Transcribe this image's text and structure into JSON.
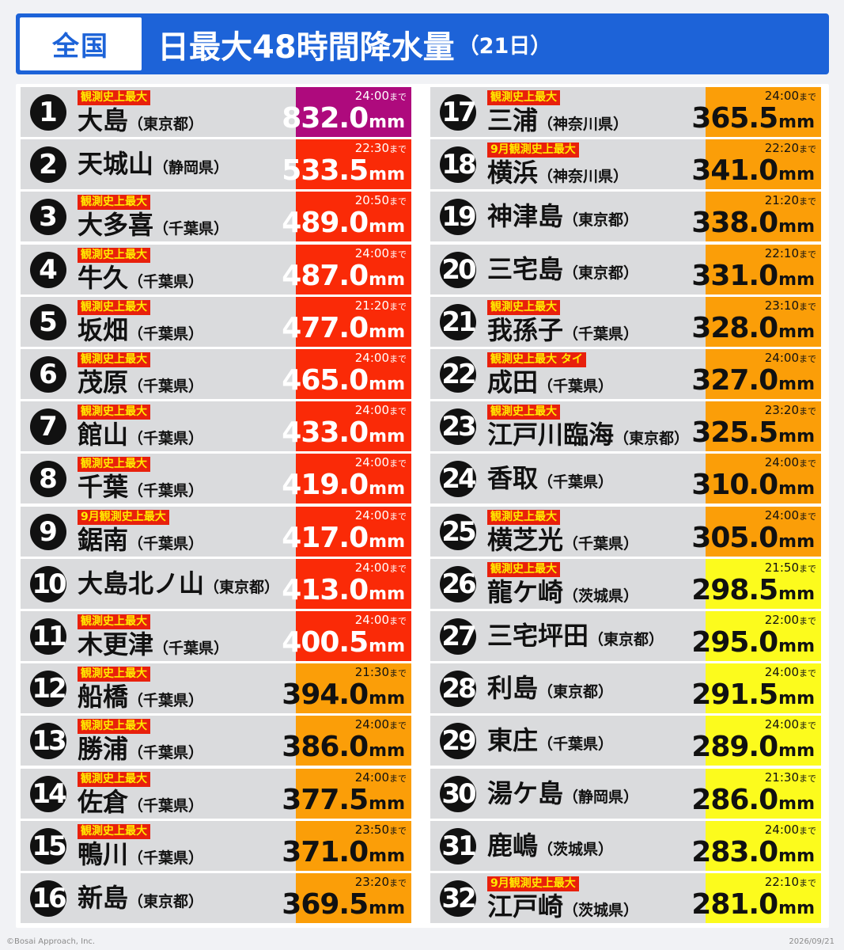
{
  "header": {
    "badge": "全国",
    "title": "日最大48時間降水量",
    "title_sub": "（21日）"
  },
  "unit": "mm",
  "until_suffix": "まで",
  "colors": {
    "header_blue": "#1d63d8",
    "purple": "#ae0a7d",
    "red": "#fa2a07",
    "orange": "#fb9e08",
    "yellow": "#fcfb1d",
    "tag_red": "#e8200c",
    "tag_text_yellow": "#ffeb00"
  },
  "rows": [
    {
      "rank": "1",
      "tag": "観測史上最大",
      "name": "大島",
      "pref": "（東京都）",
      "until": "24:00",
      "value": "832.0",
      "color": "purple"
    },
    {
      "rank": "2",
      "tag": "",
      "name": "天城山",
      "pref": "（静岡県）",
      "until": "22:30",
      "value": "533.5",
      "color": "red"
    },
    {
      "rank": "3",
      "tag": "観測史上最大",
      "name": "大多喜",
      "pref": "（千葉県）",
      "until": "20:50",
      "value": "489.0",
      "color": "red"
    },
    {
      "rank": "4",
      "tag": "観測史上最大",
      "name": "牛久",
      "pref": "（千葉県）",
      "until": "24:00",
      "value": "487.0",
      "color": "red"
    },
    {
      "rank": "5",
      "tag": "観測史上最大",
      "name": "坂畑",
      "pref": "（千葉県）",
      "until": "21:20",
      "value": "477.0",
      "color": "red"
    },
    {
      "rank": "6",
      "tag": "観測史上最大",
      "name": "茂原",
      "pref": "（千葉県）",
      "until": "24:00",
      "value": "465.0",
      "color": "red"
    },
    {
      "rank": "7",
      "tag": "観測史上最大",
      "name": "館山",
      "pref": "（千葉県）",
      "until": "24:00",
      "value": "433.0",
      "color": "red"
    },
    {
      "rank": "8",
      "tag": "観測史上最大",
      "name": "千葉",
      "pref": "（千葉県）",
      "until": "24:00",
      "value": "419.0",
      "color": "red"
    },
    {
      "rank": "9",
      "tag": "9月観測史上最大",
      "name": "鋸南",
      "pref": "（千葉県）",
      "until": "24:00",
      "value": "417.0",
      "color": "red"
    },
    {
      "rank": "10",
      "tag": "",
      "name": "大島北ノ山",
      "pref": "（東京都）",
      "until": "24:00",
      "value": "413.0",
      "color": "red"
    },
    {
      "rank": "11",
      "tag": "観測史上最大",
      "name": "木更津",
      "pref": "（千葉県）",
      "until": "24:00",
      "value": "400.5",
      "color": "red"
    },
    {
      "rank": "12",
      "tag": "観測史上最大",
      "name": "船橋",
      "pref": "（千葉県）",
      "until": "21:30",
      "value": "394.0",
      "color": "orange"
    },
    {
      "rank": "13",
      "tag": "観測史上最大",
      "name": "勝浦",
      "pref": "（千葉県）",
      "until": "24:00",
      "value": "386.0",
      "color": "orange"
    },
    {
      "rank": "14",
      "tag": "観測史上最大",
      "name": "佐倉",
      "pref": "（千葉県）",
      "until": "24:00",
      "value": "377.5",
      "color": "orange"
    },
    {
      "rank": "15",
      "tag": "観測史上最大",
      "name": "鴨川",
      "pref": "（千葉県）",
      "until": "23:50",
      "value": "371.0",
      "color": "orange"
    },
    {
      "rank": "16",
      "tag": "",
      "name": "新島",
      "pref": "（東京都）",
      "until": "23:20",
      "value": "369.5",
      "color": "orange"
    },
    {
      "rank": "17",
      "tag": "観測史上最大",
      "name": "三浦",
      "pref": "（神奈川県）",
      "until": "24:00",
      "value": "365.5",
      "color": "orange"
    },
    {
      "rank": "18",
      "tag": "9月観測史上最大",
      "name": "横浜",
      "pref": "（神奈川県）",
      "until": "22:20",
      "value": "341.0",
      "color": "orange"
    },
    {
      "rank": "19",
      "tag": "",
      "name": "神津島",
      "pref": "（東京都）",
      "until": "21:20",
      "value": "338.0",
      "color": "orange"
    },
    {
      "rank": "20",
      "tag": "",
      "name": "三宅島",
      "pref": "（東京都）",
      "until": "22:10",
      "value": "331.0",
      "color": "orange"
    },
    {
      "rank": "21",
      "tag": "観測史上最大",
      "name": "我孫子",
      "pref": "（千葉県）",
      "until": "23:10",
      "value": "328.0",
      "color": "orange"
    },
    {
      "rank": "22",
      "tag": "観測史上最大 タイ",
      "name": "成田",
      "pref": "（千葉県）",
      "until": "24:00",
      "value": "327.0",
      "color": "orange"
    },
    {
      "rank": "23",
      "tag": "観測史上最大",
      "name": "江戸川臨海",
      "pref": "（東京都）",
      "until": "23:20",
      "value": "325.5",
      "color": "orange"
    },
    {
      "rank": "24",
      "tag": "",
      "name": "香取",
      "pref": "（千葉県）",
      "until": "24:00",
      "value": "310.0",
      "color": "orange"
    },
    {
      "rank": "25",
      "tag": "観測史上最大",
      "name": "横芝光",
      "pref": "（千葉県）",
      "until": "24:00",
      "value": "305.0",
      "color": "orange"
    },
    {
      "rank": "26",
      "tag": "観測史上最大",
      "name": "龍ケ崎",
      "pref": "（茨城県）",
      "until": "21:50",
      "value": "298.5",
      "color": "yellow"
    },
    {
      "rank": "27",
      "tag": "",
      "name": "三宅坪田",
      "pref": "（東京都）",
      "until": "22:00",
      "value": "295.0",
      "color": "yellow"
    },
    {
      "rank": "28",
      "tag": "",
      "name": "利島",
      "pref": "（東京都）",
      "until": "24:00",
      "value": "291.5",
      "color": "yellow"
    },
    {
      "rank": "29",
      "tag": "",
      "name": "東庄",
      "pref": "（千葉県）",
      "until": "24:00",
      "value": "289.0",
      "color": "yellow"
    },
    {
      "rank": "30",
      "tag": "",
      "name": "湯ケ島",
      "pref": "（静岡県）",
      "until": "21:30",
      "value": "286.0",
      "color": "yellow"
    },
    {
      "rank": "31",
      "tag": "",
      "name": "鹿嶋",
      "pref": "（茨城県）",
      "until": "24:00",
      "value": "283.0",
      "color": "yellow"
    },
    {
      "rank": "32",
      "tag": "9月観測史上最大",
      "name": "江戸崎",
      "pref": "（茨城県）",
      "until": "22:10",
      "value": "281.0",
      "color": "yellow"
    }
  ],
  "footer": {
    "copyright": "©Bosai Approach, Inc.",
    "date": "2026/09/21"
  }
}
